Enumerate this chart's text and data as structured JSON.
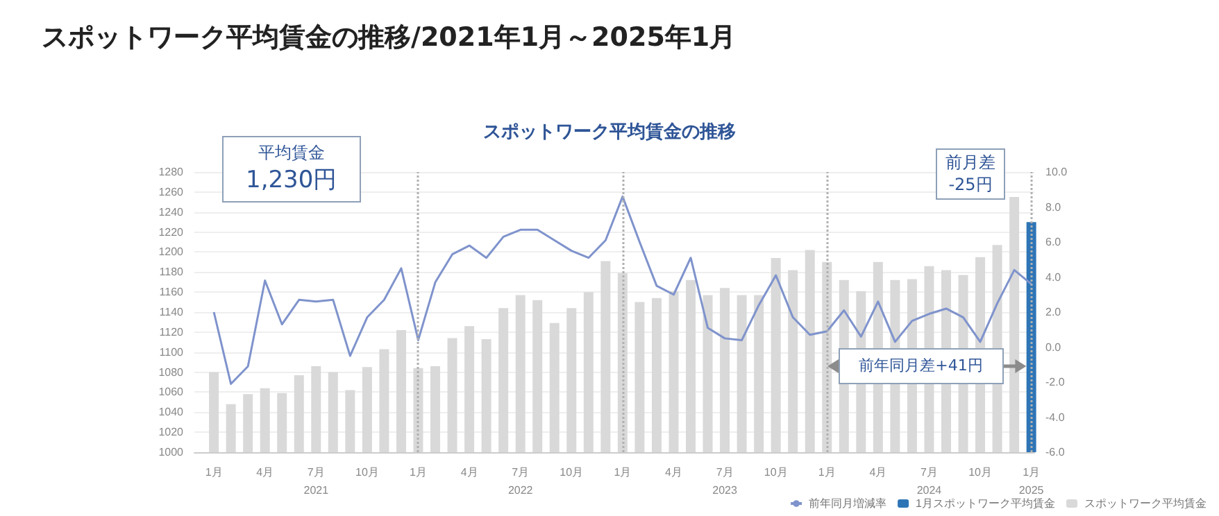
{
  "chart_data": {
    "type": "bar",
    "title": "スポットワーク平均賃金の推移/2021年1月～2025年1月",
    "subtitle": "スポットワーク平均賃金の推移",
    "x": [
      "2021-01",
      "2021-02",
      "2021-03",
      "2021-04",
      "2021-05",
      "2021-06",
      "2021-07",
      "2021-08",
      "2021-09",
      "2021-10",
      "2021-11",
      "2021-12",
      "2022-01",
      "2022-02",
      "2022-03",
      "2022-04",
      "2022-05",
      "2022-06",
      "2022-07",
      "2022-08",
      "2022-09",
      "2022-10",
      "2022-11",
      "2022-12",
      "2023-01",
      "2023-02",
      "2023-03",
      "2023-04",
      "2023-05",
      "2023-06",
      "2023-07",
      "2023-08",
      "2023-09",
      "2023-10",
      "2023-11",
      "2023-12",
      "2024-01",
      "2024-02",
      "2024-03",
      "2024-04",
      "2024-05",
      "2024-06",
      "2024-07",
      "2024-08",
      "2024-09",
      "2024-10",
      "2024-11",
      "2024-12",
      "2025-01"
    ],
    "xlim": [
      "2020-12-12",
      "2025-01-22"
    ],
    "xticks": [
      {
        "value": "2021-01",
        "label": "1月"
      },
      {
        "value": "2021-04",
        "label": "4月"
      },
      {
        "value": "2021-07",
        "label": "7月\n2021"
      },
      {
        "value": "2021-10",
        "label": "10月"
      },
      {
        "value": "2022-01",
        "label": "1月"
      },
      {
        "value": "2022-04",
        "label": "4月"
      },
      {
        "value": "2022-07",
        "label": "7月\n2022"
      },
      {
        "value": "2022-10",
        "label": "10月"
      },
      {
        "value": "2023-01",
        "label": "1月"
      },
      {
        "value": "2023-04",
        "label": "4月"
      },
      {
        "value": "2023-07",
        "label": "7月\n2023"
      },
      {
        "value": "2023-10",
        "label": "10月"
      },
      {
        "value": "2024-01",
        "label": "1月"
      },
      {
        "value": "2024-04",
        "label": "4月"
      },
      {
        "value": "2024-07",
        "label": "7月\n2024"
      },
      {
        "value": "2024-10",
        "label": "10月"
      },
      {
        "value": "2025-01",
        "label": "1月\n2025"
      }
    ],
    "series": [
      {
        "name": "前年同月増減率",
        "type": "line",
        "axis": "y2",
        "color": "#7f93cc",
        "values": [
          2.0,
          -2.1,
          -1.1,
          3.8,
          1.3,
          2.7,
          2.6,
          2.7,
          -0.5,
          1.7,
          2.7,
          4.5,
          0.4,
          3.7,
          5.3,
          5.8,
          5.1,
          6.3,
          6.7,
          6.7,
          6.1,
          5.5,
          5.1,
          6.1,
          8.6,
          6.0,
          3.5,
          3.0,
          5.1,
          1.1,
          0.5,
          0.4,
          2.4,
          4.1,
          1.7,
          0.7,
          0.9,
          2.1,
          0.6,
          2.6,
          0.3,
          1.5,
          1.9,
          2.2,
          1.7,
          0.3,
          2.5,
          4.4,
          3.6
        ]
      },
      {
        "name": "1月スポットワーク平均賃金",
        "color": "#2e75b6",
        "values": [
          null,
          null,
          null,
          null,
          null,
          null,
          null,
          null,
          null,
          null,
          null,
          null,
          null,
          null,
          null,
          null,
          null,
          null,
          null,
          null,
          null,
          null,
          null,
          null,
          null,
          null,
          null,
          null,
          null,
          null,
          null,
          null,
          null,
          null,
          null,
          null,
          null,
          null,
          null,
          null,
          null,
          null,
          null,
          null,
          null,
          null,
          null,
          null,
          1230
        ]
      },
      {
        "name": "スポットワーク平均賃金",
        "color": "#d9d9d9",
        "values": [
          1080,
          1048,
          1058,
          1064,
          1059,
          1077,
          1086,
          1080,
          1062,
          1085,
          1103,
          1122,
          1084,
          1086,
          1114,
          1126,
          1113,
          1144,
          1157,
          1152,
          1129,
          1144,
          1160,
          1191,
          1179,
          1150,
          1154,
          1161,
          1172,
          1157,
          1164,
          1157,
          1157,
          1194,
          1182,
          1202,
          1190,
          1172,
          1161,
          1190,
          1172,
          1173,
          1186,
          1182,
          1177,
          1195,
          1207,
          1255,
          null
        ]
      }
    ],
    "ylim": [
      1000,
      1280
    ],
    "yticks": [
      1000,
      1020,
      1040,
      1060,
      1080,
      1100,
      1120,
      1140,
      1160,
      1180,
      1200,
      1220,
      1240,
      1260,
      1280
    ],
    "y2lim": [
      -6,
      10
    ],
    "y2ticks": [
      {
        "value": -6,
        "label": "-6.0"
      },
      {
        "value": -4,
        "label": "-4.0"
      },
      {
        "value": -2,
        "label": "-2.0"
      },
      {
        "value": 0,
        "label": "0.0"
      },
      {
        "value": 2,
        "label": "2.0"
      },
      {
        "value": 4,
        "label": "4.0"
      },
      {
        "value": 6,
        "label": "6.0"
      },
      {
        "value": 8,
        "label": "8.0"
      },
      {
        "value": 10,
        "label": "10.0"
      }
    ],
    "ref_lines": [
      {
        "axis": "x",
        "value": "2022-01",
        "line_style": "dotted",
        "color": "#b0b0b0"
      },
      {
        "axis": "x",
        "value": "2023-01",
        "line_style": "dotted",
        "color": "#b0b0b0"
      },
      {
        "axis": "x",
        "value": "2024-01",
        "line_style": "dotted",
        "color": "#b0b0b0"
      },
      {
        "axis": "x",
        "value": "2025-01",
        "line_style": "dotted",
        "color": "#b0b0b0"
      }
    ],
    "annotations": [
      "平均賃金\n1,230円",
      "前月差\n-25円",
      "前年同月差+41円"
    ],
    "grid": "y",
    "legend": "bottom right",
    "marker": "none",
    "line_style": "solid"
  }
}
